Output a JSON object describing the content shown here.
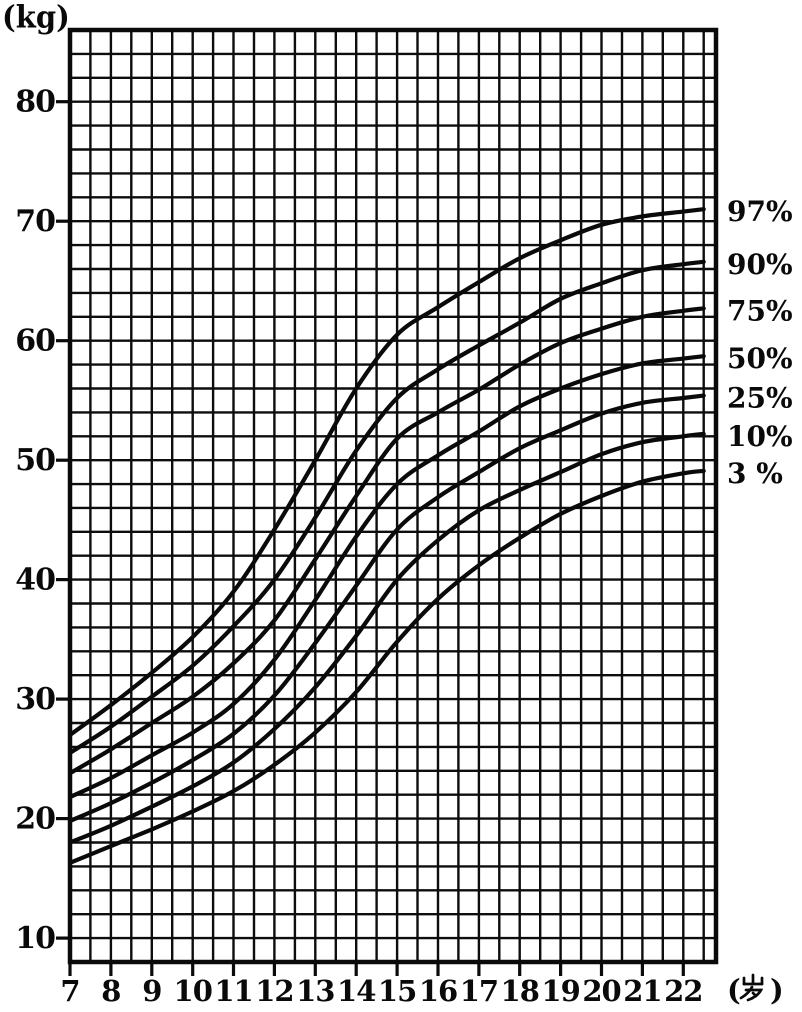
{
  "axes": {
    "y_unit_label": "(kg)",
    "x_unit_label": "(岁)"
  },
  "chart_data": {
    "type": "line",
    "title": "",
    "xlabel": "(岁)",
    "ylabel": "(kg)",
    "x": [
      7,
      8,
      9,
      10,
      11,
      12,
      13,
      14,
      15,
      16,
      17,
      18,
      19,
      20,
      21,
      22,
      22.5
    ],
    "series": [
      {
        "name": "97%",
        "values": [
          27.0,
          29.5,
          32.2,
          35.2,
          39.0,
          44.2,
          50.0,
          56.0,
          60.5,
          62.8,
          64.9,
          66.9,
          68.4,
          69.7,
          70.4,
          70.8,
          71.0
        ]
      },
      {
        "name": "90%",
        "values": [
          25.5,
          27.7,
          30.2,
          32.8,
          36.1,
          40.0,
          45.2,
          50.8,
          55.2,
          57.6,
          59.6,
          61.5,
          63.5,
          64.8,
          65.9,
          66.4,
          66.6
        ]
      },
      {
        "name": "75%",
        "values": [
          23.8,
          25.8,
          28.0,
          30.2,
          33.0,
          36.6,
          41.7,
          47.0,
          51.8,
          54.0,
          55.9,
          58.0,
          59.8,
          61.0,
          62.0,
          62.5,
          62.7
        ]
      },
      {
        "name": "50%",
        "values": [
          21.8,
          23.4,
          25.3,
          27.2,
          29.6,
          33.3,
          38.3,
          43.6,
          48.0,
          50.4,
          52.4,
          54.5,
          56.0,
          57.2,
          58.1,
          58.5,
          58.7
        ]
      },
      {
        "name": "25%",
        "values": [
          19.8,
          21.3,
          23.0,
          24.9,
          27.1,
          30.3,
          34.7,
          39.5,
          44.2,
          46.9,
          49.0,
          51.0,
          52.5,
          53.9,
          54.8,
          55.2,
          55.4
        ]
      },
      {
        "name": "10%",
        "values": [
          18.0,
          19.4,
          21.0,
          22.7,
          24.7,
          27.5,
          31.0,
          35.3,
          40.0,
          43.3,
          45.8,
          47.5,
          49.0,
          50.5,
          51.5,
          52.0,
          52.2
        ]
      },
      {
        "name": "3 %",
        "values": [
          16.3,
          17.7,
          19.1,
          20.6,
          22.3,
          24.5,
          27.2,
          30.6,
          34.8,
          38.4,
          41.2,
          43.5,
          45.5,
          47.0,
          48.2,
          48.9,
          49.1
        ]
      }
    ],
    "x_ticks": [
      7,
      8,
      9,
      10,
      11,
      12,
      13,
      14,
      15,
      16,
      17,
      18,
      19,
      20,
      21,
      22
    ],
    "y_ticks": [
      10,
      20,
      30,
      40,
      50,
      60,
      70,
      80
    ],
    "xlim": [
      7,
      22.8
    ],
    "ylim": [
      8,
      86
    ],
    "grid": {
      "visible": true,
      "x_step": 0.5,
      "y_step": 2
    },
    "legend_position": "right-outside",
    "line_color": "#0a0a0a",
    "grid_color": "#0d0d0d",
    "background": "#ffffff"
  }
}
